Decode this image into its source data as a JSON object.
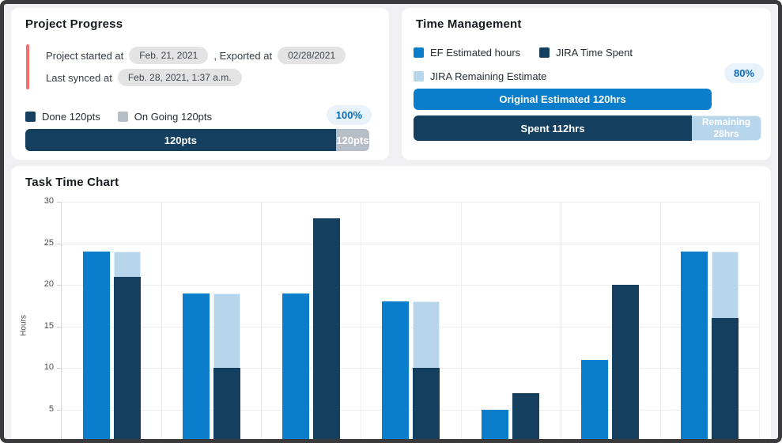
{
  "colors": {
    "window_border": "#3a3a3c",
    "page_bg": "#f0eff1",
    "card_bg": "#ffffff",
    "accent_red": "#f76d6d",
    "pill_bg": "#e3e3e4",
    "badge_bg": "#e8f2fb",
    "badge_text": "#0c6cb5",
    "blue": "#0b7ecb",
    "dark_navy": "#153f5e",
    "light_blue": "#b7d6eb",
    "gray": "#b6bec7"
  },
  "project_progress": {
    "title": "Project Progress",
    "started_label": "Project started at",
    "started_value": "Feb. 21, 2021",
    "exported_label": ", Exported at",
    "exported_value": "02/28/2021",
    "synced_label": "Last synced at",
    "synced_value": "Feb. 28, 2021, 1:37 a.m.",
    "legend": [
      {
        "label": "Done 120pts",
        "color": "#153f5e"
      },
      {
        "label": "On Going 120pts",
        "color": "#b6bec7"
      }
    ],
    "percent_badge": "100%",
    "bar": {
      "done_label": "120pts",
      "done_pct": 90.3,
      "ongoing_label": "120pts",
      "ongoing_pct": 9.7
    }
  },
  "time_management": {
    "title": "Time Management",
    "legend": [
      {
        "label": "EF Estimated hours",
        "color": "#0b7ecb"
      },
      {
        "label": "JIRA Time Spent",
        "color": "#153f5e"
      },
      {
        "label": "JIRA Remaining Estimate",
        "color": "#b7d6eb"
      }
    ],
    "percent_badge": "80%",
    "estimated_bar": {
      "label": "Original Estimated 120hrs",
      "width_pct": 85.7
    },
    "spent_bar": {
      "spent_label": "Spent 112hrs",
      "spent_pct": 80,
      "remaining_label": "Remaining 28hrs",
      "remaining_pct": 20
    }
  },
  "chart_data": {
    "type": "bar",
    "title": "Task Time Chart",
    "ylabel": "Hours",
    "ylim": [
      0,
      30
    ],
    "yticks": [
      30,
      25,
      20,
      15,
      10,
      5
    ],
    "grid": true,
    "xticklabels_visible": false,
    "groups": 7,
    "series": [
      {
        "name": "EF Estimated hours",
        "color": "#0b7ecb",
        "type": "bar",
        "values": [
          24,
          19,
          19,
          18,
          5,
          11,
          24
        ]
      },
      {
        "name": "JIRA Time Spent",
        "color": "#153f5e",
        "type": "bar",
        "values": [
          21,
          10,
          28,
          10,
          7,
          20,
          16
        ]
      },
      {
        "name": "JIRA Remaining Estimate",
        "color": "#b7d6eb",
        "type": "bar",
        "stacked_on": "JIRA Time Spent",
        "values": [
          3,
          9,
          0,
          8,
          0,
          0,
          8
        ]
      }
    ]
  }
}
